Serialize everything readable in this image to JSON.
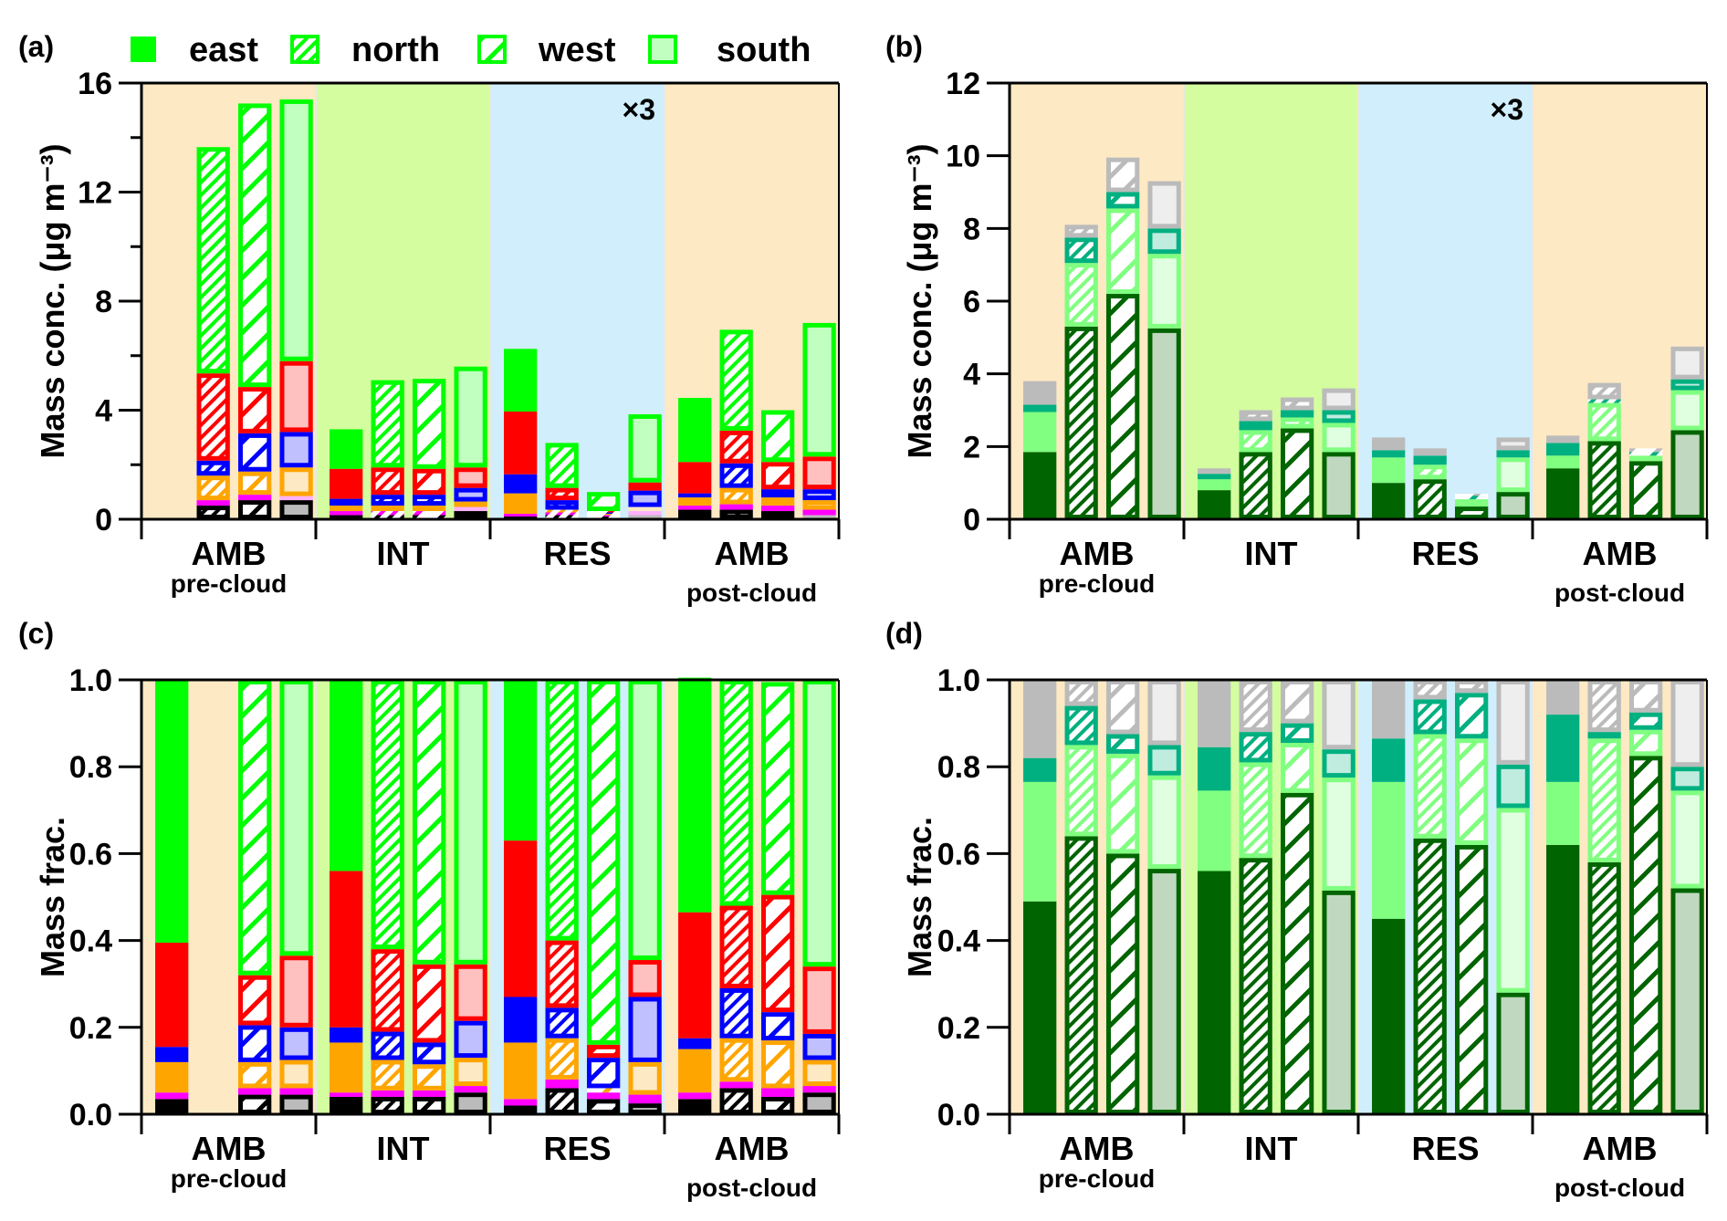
{
  "legend": {
    "items": [
      {
        "label": "east",
        "style": "solid"
      },
      {
        "label": "north",
        "style": "dense-hatch"
      },
      {
        "label": "west",
        "style": "sparse-hatch"
      },
      {
        "label": "south",
        "style": "light-fill"
      }
    ],
    "color": "#00ff00"
  },
  "multiplier_note": "×3",
  "groups": [
    {
      "label": "AMB",
      "sublabel": "pre-cloud",
      "bg": "#fde9c3"
    },
    {
      "label": "INT",
      "sublabel": "",
      "bg": "#d4fd9f"
    },
    {
      "label": "RES",
      "sublabel": "",
      "bg": "#d0eefb"
    },
    {
      "label": "AMB",
      "sublabel": "post-cloud",
      "bg": "#fde9c3"
    }
  ],
  "directions": [
    "east",
    "north",
    "west",
    "south"
  ],
  "chart_data": [
    {
      "panel": "(a)",
      "type": "bar",
      "stacked": true,
      "ylabel": "Mass conc. (μg m⁻³)",
      "ylim": [
        0,
        16
      ],
      "yticks": [
        0,
        4,
        8,
        12,
        16
      ],
      "yticklabels": [
        "0",
        "4",
        "8",
        "12",
        "16"
      ],
      "note": "RES values multiplied by 3",
      "series": [
        {
          "name": "black",
          "color": "#000000",
          "light": "#bbbbbb",
          "values": [
            [
              null,
              0.5,
              0.7,
              0.7
            ],
            [
              0.15,
              0.15,
              0.15,
              0.3
            ],
            [
              0.1,
              0.15,
              0.1,
              0.15
            ],
            [
              0.35,
              0.35,
              0.3,
              0.15
            ]
          ]
        },
        {
          "name": "magenta",
          "color": "#ff00ff",
          "light": "#ffb0ff",
          "values": [
            [
              null,
              0.2,
              0.2,
              0.15
            ],
            [
              0.15,
              0.15,
              0.15,
              0.15
            ],
            [
              0.1,
              0.1,
              0.05,
              0.15
            ],
            [
              0.15,
              0.2,
              0.2,
              0.2
            ]
          ]
        },
        {
          "name": "orange",
          "color": "#ffa500",
          "light": "#fde9c3",
          "values": [
            [
              null,
              0.9,
              0.85,
              1.05
            ],
            [
              0.2,
              0.2,
              0.2,
              0.2
            ],
            [
              0.75,
              0.1,
              0.05,
              0.15
            ],
            [
              0.3,
              0.6,
              0.3,
              0.35
            ]
          ]
        },
        {
          "name": "blue",
          "color": "#0000ff",
          "light": "#c0c0ff",
          "values": [
            [
              null,
              0.55,
              1.4,
              1.3
            ],
            [
              0.25,
              0.4,
              0.4,
              0.5
            ],
            [
              0.7,
              0.35,
              0.05,
              0.6
            ],
            [
              0.15,
              0.9,
              0.3,
              0.4
            ]
          ]
        },
        {
          "name": "red",
          "color": "#ff0000",
          "light": "#ffc0c0",
          "values": [
            [
              null,
              3.2,
              1.7,
              2.6
            ],
            [
              1.1,
              1.0,
              0.95,
              0.75
            ],
            [
              2.3,
              0.45,
              0.05,
              0.3
            ],
            [
              1.15,
              1.2,
              1.0,
              1.2
            ]
          ]
        },
        {
          "name": "green",
          "color": "#00ff00",
          "light": "#c0ffc0",
          "values": [
            [
              null,
              8.3,
              10.4,
              9.6
            ],
            [
              1.45,
              3.2,
              3.3,
              3.7
            ],
            [
              2.3,
              1.65,
              0.7,
              2.5
            ],
            [
              2.35,
              3.7,
              1.9,
              4.9
            ]
          ]
        }
      ]
    },
    {
      "panel": "(b)",
      "type": "bar",
      "stacked": true,
      "ylabel": "Mass conc. (μg m⁻³)",
      "ylim": [
        0,
        12
      ],
      "yticks": [
        0,
        2,
        4,
        6,
        8,
        10,
        12
      ],
      "yticklabels": [
        "0",
        "2",
        "4",
        "6",
        "8",
        "10",
        "12"
      ],
      "note": "RES values multiplied by 3",
      "series": [
        {
          "name": "dark green",
          "color": "#006400",
          "light": "#c0d8c0",
          "values": [
            [
              1.85,
              5.3,
              6.2,
              5.25
            ],
            [
              0.8,
              1.85,
              2.5,
              1.85
            ],
            [
              1.0,
              1.1,
              0.35,
              0.75
            ],
            [
              1.4,
              2.15,
              1.6,
              2.45
            ]
          ]
        },
        {
          "name": "light green",
          "color": "#80ff80",
          "light": "#e0ffe0",
          "values": [
            [
              1.1,
              1.75,
              2.35,
              2.05
            ],
            [
              0.3,
              0.6,
              0.3,
              0.8
            ],
            [
              0.7,
              0.4,
              0.2,
              0.95
            ],
            [
              0.35,
              1.05,
              0.15,
              1.1
            ]
          ]
        },
        {
          "name": "teal",
          "color": "#00b080",
          "light": "#c0ece0",
          "values": [
            [
              0.2,
              0.7,
              0.45,
              0.7
            ],
            [
              0.15,
              0.25,
              0.2,
              0.35
            ],
            [
              0.2,
              0.25,
              0.1,
              0.2
            ],
            [
              0.35,
              0.1,
              0.1,
              0.3
            ]
          ]
        },
        {
          "name": "gray",
          "color": "#bbbbbb",
          "light": "#eeeeee",
          "values": [
            [
              0.65,
              0.35,
              0.95,
              1.3
            ],
            [
              0.15,
              0.3,
              0.35,
              0.6
            ],
            [
              0.35,
              0.2,
              0.05,
              0.35
            ],
            [
              0.2,
              0.45,
              0.1,
              0.9
            ]
          ]
        }
      ]
    },
    {
      "panel": "(c)",
      "type": "bar",
      "stacked": true,
      "ylabel": "Mass frac.",
      "ylim": [
        0,
        1.0
      ],
      "yticks": [
        0,
        0.2,
        0.4,
        0.6,
        0.8,
        1.0
      ],
      "yticklabels": [
        "0.0",
        "0.2",
        "0.4",
        "0.6",
        "0.8",
        "1.0"
      ],
      "series": [
        {
          "name": "black",
          "color": "#000000",
          "light": "#bbbbbb",
          "values": [
            [
              0.035,
              null,
              0.045,
              0.045
            ],
            [
              0.04,
              0.04,
              0.04,
              0.05
            ],
            [
              0.02,
              0.06,
              0.035,
              0.025
            ],
            [
              0.035,
              0.06,
              0.04,
              0.05
            ]
          ]
        },
        {
          "name": "magenta",
          "color": "#ff00ff",
          "light": "#ffb0ff",
          "values": [
            [
              0.015,
              null,
              0.015,
              0.015
            ],
            [
              0.01,
              0.015,
              0.015,
              0.015
            ],
            [
              0.015,
              0.02,
              0.015,
              0.02
            ],
            [
              0.015,
              0.015,
              0.02,
              0.015
            ]
          ]
        },
        {
          "name": "orange",
          "color": "#ffa500",
          "light": "#fde9c3",
          "values": [
            [
              0.07,
              null,
              0.06,
              0.065
            ],
            [
              0.115,
              0.07,
              0.06,
              0.065
            ],
            [
              0.13,
              0.095,
              0.01,
              0.075
            ],
            [
              0.1,
              0.1,
              0.11,
              0.06
            ]
          ]
        },
        {
          "name": "blue",
          "color": "#0000ff",
          "light": "#c0c0ff",
          "values": [
            [
              0.035,
              null,
              0.085,
              0.075
            ],
            [
              0.035,
              0.065,
              0.05,
              0.085
            ],
            [
              0.105,
              0.07,
              0.07,
              0.15
            ],
            [
              0.025,
              0.115,
              0.065,
              0.06
            ]
          ]
        },
        {
          "name": "red",
          "color": "#ff0000",
          "light": "#ffc0c0",
          "values": [
            [
              0.24,
              null,
              0.115,
              0.165
            ],
            [
              0.36,
              0.19,
              0.18,
              0.13
            ],
            [
              0.36,
              0.155,
              0.03,
              0.085
            ],
            [
              0.29,
              0.19,
              0.27,
              0.155
            ]
          ]
        },
        {
          "name": "green",
          "color": "#00ff00",
          "light": "#c0ffc0",
          "values": [
            [
              0.605,
              null,
              0.68,
              0.635
            ],
            [
              0.44,
              0.62,
              0.655,
              0.655
            ],
            [
              0.37,
              0.6,
              0.84,
              0.645
            ],
            [
              0.54,
              0.52,
              0.49,
              0.66
            ]
          ]
        }
      ]
    },
    {
      "panel": "(d)",
      "type": "bar",
      "stacked": true,
      "ylabel": "Mass frac.",
      "ylim": [
        0,
        1.0
      ],
      "yticks": [
        0,
        0.2,
        0.4,
        0.6,
        0.8,
        1.0
      ],
      "yticklabels": [
        "0.0",
        "0.2",
        "0.4",
        "0.6",
        "0.8",
        "1.0"
      ],
      "series": [
        {
          "name": "dark green",
          "color": "#006400",
          "light": "#c0d8c0",
          "values": [
            [
              0.49,
              0.64,
              0.6,
              0.565
            ],
            [
              0.56,
              0.59,
              0.74,
              0.515
            ],
            [
              0.45,
              0.635,
              0.62,
              0.28
            ],
            [
              0.62,
              0.58,
              0.825,
              0.52
            ]
          ]
        },
        {
          "name": "light green",
          "color": "#80ff80",
          "light": "#e0ffe0",
          "values": [
            [
              0.275,
              0.21,
              0.23,
              0.215
            ],
            [
              0.185,
              0.22,
              0.115,
              0.26
            ],
            [
              0.315,
              0.24,
              0.245,
              0.425
            ],
            [
              0.145,
              0.285,
              0.06,
              0.225
            ]
          ]
        },
        {
          "name": "teal",
          "color": "#00b080",
          "light": "#c0ece0",
          "values": [
            [
              0.055,
              0.09,
              0.045,
              0.07
            ],
            [
              0.1,
              0.07,
              0.045,
              0.065
            ],
            [
              0.1,
              0.08,
              0.105,
              0.1
            ],
            [
              0.155,
              0.015,
              0.04,
              0.055
            ]
          ]
        },
        {
          "name": "gray",
          "color": "#bbbbbb",
          "light": "#eeeeee",
          "values": [
            [
              0.18,
              0.06,
              0.125,
              0.15
            ],
            [
              0.155,
              0.12,
              0.1,
              0.16
            ],
            [
              0.135,
              0.045,
              0.03,
              0.195
            ],
            [
              0.08,
              0.12,
              0.075,
              0.2
            ]
          ]
        }
      ]
    }
  ]
}
